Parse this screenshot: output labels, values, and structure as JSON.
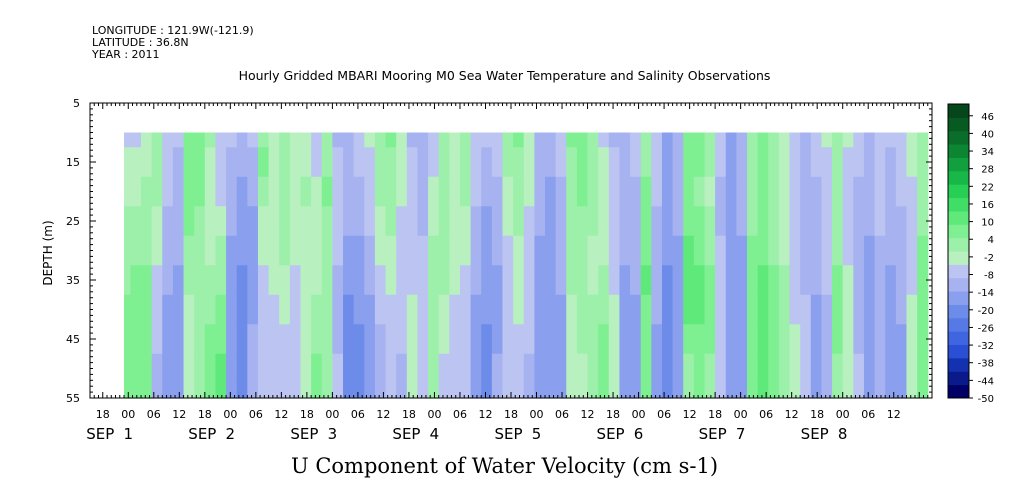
{
  "header": {
    "longitude": "LONGITUDE : 121.9W(-121.9)",
    "latitude": "LATITUDE : 36.8N",
    "year": "YEAR : 2011",
    "title": "Hourly Gridded MBARI Mooring M0 Sea Water Temperature and Salinity Observations"
  },
  "chart_data": {
    "type": "heatmap",
    "title": "Hourly Gridded MBARI Mooring M0 Sea Water Temperature and Salinity Observations",
    "xlabel": "U Component of Water Velocity (cm s-1)",
    "ylabel": "DEPTH (m)",
    "units": "cm s-1",
    "x_axis": {
      "unit": "hours since SEP 1 00:00",
      "range": [
        -9,
        189
      ],
      "hour_tick_labels": [
        "18",
        "00",
        "06",
        "12",
        "18",
        "00",
        "06",
        "12",
        "18",
        "00",
        "06",
        "12",
        "18",
        "00",
        "06",
        "12",
        "18",
        "00",
        "06",
        "12",
        "18",
        "00",
        "06",
        "12",
        "18",
        "00",
        "06",
        "12",
        "18",
        "00",
        "06",
        "12"
      ],
      "hour_tick_values": [
        -6,
        0,
        6,
        12,
        18,
        24,
        30,
        36,
        42,
        48,
        54,
        60,
        66,
        72,
        78,
        84,
        90,
        96,
        102,
        108,
        114,
        120,
        126,
        132,
        138,
        144,
        150,
        156,
        162,
        168,
        174,
        180
      ],
      "date_labels": [
        {
          "month": "SEP",
          "day": "1"
        },
        {
          "month": "SEP",
          "day": "2"
        },
        {
          "month": "SEP",
          "day": "3"
        },
        {
          "month": "SEP",
          "day": "4"
        },
        {
          "month": "SEP",
          "day": "5"
        },
        {
          "month": "SEP",
          "day": "6"
        },
        {
          "month": "SEP",
          "day": "7"
        },
        {
          "month": "SEP",
          "day": "8"
        }
      ],
      "date_label_values": [
        0,
        24,
        48,
        72,
        96,
        120,
        144,
        168
      ]
    },
    "y_axis": {
      "range": [
        5,
        55
      ],
      "inverted": true,
      "tick_labels": [
        "5",
        "15",
        "25",
        "35",
        "45",
        "55"
      ],
      "tick_values": [
        5,
        15,
        25,
        35,
        45,
        55
      ]
    },
    "data_extent": {
      "x": [
        -1,
        188
      ],
      "depth": [
        10,
        55
      ]
    },
    "colorbar": {
      "range": [
        -50,
        50
      ],
      "step": 6,
      "labels": [
        "46",
        "40",
        "34",
        "28",
        "22",
        "16",
        "10",
        "4",
        "-2",
        "-8",
        "-14",
        "-20",
        "-26",
        "-32",
        "-38",
        "-44",
        "-50"
      ],
      "label_values": [
        46,
        40,
        34,
        28,
        22,
        16,
        10,
        4,
        -2,
        -8,
        -14,
        -20,
        -26,
        -32,
        -38,
        -44,
        -50
      ]
    },
    "column_times": [
      -1,
      2,
      4,
      7,
      9,
      12,
      14,
      17,
      19,
      22,
      24,
      27,
      29,
      32,
      34,
      37,
      39,
      42,
      44,
      47,
      49,
      52,
      54,
      57,
      59,
      62,
      64,
      67,
      69,
      72,
      74,
      77,
      79,
      82,
      84,
      87,
      89,
      92,
      94,
      97,
      99,
      102,
      104,
      107,
      109,
      112,
      114,
      117,
      119,
      122,
      124,
      127,
      129,
      132,
      134,
      137,
      139,
      142,
      144,
      147,
      149,
      152,
      154,
      157,
      159,
      162,
      164,
      167,
      169,
      172,
      174,
      177,
      179,
      182,
      184,
      187
    ],
    "depth_levels": [
      10,
      15,
      20,
      25,
      30,
      35,
      40,
      45,
      50,
      55
    ],
    "columns": [
      [
        -6,
        -4,
        -2,
        0,
        2,
        4,
        6,
        7,
        8,
        8
      ],
      [
        -5,
        -3,
        -1,
        1,
        3,
        5,
        6,
        7,
        8,
        8
      ],
      [
        -4,
        -2,
        0,
        2,
        4,
        5,
        6,
        6,
        7,
        7
      ],
      [
        2,
        1,
        0,
        -2,
        -4,
        -6,
        -8,
        -9,
        -10,
        -10
      ],
      [
        -6,
        -7,
        -9,
        -10,
        -11,
        -12,
        -14,
        -15,
        -15,
        -15
      ],
      [
        -9,
        -10,
        -11,
        -12,
        -13,
        -14,
        -15,
        -16,
        -16,
        -16
      ],
      [
        9,
        8,
        7,
        5,
        3,
        1,
        -1,
        -3,
        -4,
        -4
      ],
      [
        8,
        7,
        5,
        3,
        2,
        1,
        1,
        2,
        3,
        3
      ],
      [
        1,
        -1,
        -2,
        -2,
        -1,
        1,
        3,
        5,
        6,
        6
      ],
      [
        -6,
        -6,
        -5,
        -3,
        0,
        3,
        6,
        8,
        10,
        10
      ],
      [
        -9,
        -10,
        -12,
        -13,
        -14,
        -14,
        -14,
        -14,
        -14,
        -14
      ],
      [
        -12,
        -13,
        -14,
        -16,
        -18,
        -19,
        -20,
        -20,
        -19,
        -19
      ],
      [
        -8,
        -10,
        -12,
        -14,
        -15,
        -15,
        -14,
        -12,
        -10,
        -10
      ],
      [
        4,
        5,
        2,
        -1,
        -3,
        -5,
        -6,
        -6,
        -5,
        -5
      ],
      [
        -4,
        -3,
        -2,
        -2,
        -3,
        -4,
        -5,
        -6,
        -6,
        -6
      ],
      [
        2,
        3,
        4,
        3,
        1,
        -1,
        -3,
        -5,
        -6,
        -6
      ],
      [
        -4,
        -3,
        -2,
        -2,
        -3,
        -5,
        -7,
        -8,
        -9,
        -9
      ],
      [
        -2,
        -1,
        0,
        -1,
        -2,
        -3,
        -3,
        -2,
        -1,
        -1
      ],
      [
        -6,
        -5,
        -4,
        -3,
        -2,
        -1,
        1,
        3,
        5,
        6
      ],
      [
        1,
        3,
        5,
        4,
        2,
        1,
        2,
        3,
        4,
        4
      ],
      [
        -10,
        -8,
        -6,
        -6,
        -8,
        -10,
        -11,
        -10,
        -8,
        -8
      ],
      [
        -12,
        -12,
        -12,
        -13,
        -15,
        -17,
        -19,
        -20,
        -20,
        -20
      ],
      [
        -8,
        -9,
        -11,
        -12,
        -14,
        -16,
        -18,
        -20,
        -22,
        -22
      ],
      [
        -4,
        -5,
        -7,
        -9,
        -11,
        -13,
        -15,
        -17,
        -18,
        -18
      ],
      [
        3,
        2,
        0,
        -2,
        -4,
        -6,
        -8,
        -10,
        -11,
        -11
      ],
      [
        5,
        4,
        3,
        1,
        -1,
        -3,
        -5,
        -6,
        -7,
        -7
      ],
      [
        -2,
        -3,
        -4,
        -5,
        -6,
        -7,
        -8,
        -9,
        -10,
        -10
      ],
      [
        -10,
        -9,
        -8,
        -7,
        -6,
        -5,
        -4,
        -3,
        -2,
        -2
      ],
      [
        -12,
        -12,
        -11,
        -10,
        -9,
        -8,
        -7,
        -6,
        -5,
        -5
      ],
      [
        -6,
        -5,
        -3,
        -1,
        1,
        2,
        3,
        3,
        2,
        2
      ],
      [
        2,
        3,
        4,
        4,
        3,
        1,
        -1,
        -3,
        -5,
        -5
      ],
      [
        -3,
        -2,
        -1,
        -1,
        -2,
        -4,
        -6,
        -8,
        -9,
        -9
      ],
      [
        4,
        3,
        1,
        -1,
        -3,
        -5,
        -7,
        -8,
        -9,
        -9
      ],
      [
        -5,
        -6,
        -8,
        -10,
        -12,
        -13,
        -14,
        -15,
        -15,
        -15
      ],
      [
        -8,
        -10,
        -12,
        -14,
        -16,
        -17,
        -18,
        -19,
        -19,
        -19
      ],
      [
        -6,
        -8,
        -10,
        -12,
        -13,
        -14,
        -14,
        -14,
        -13,
        -13
      ],
      [
        2,
        0,
        -2,
        -4,
        -6,
        -7,
        -8,
        -8,
        -7,
        -7
      ],
      [
        5,
        4,
        3,
        1,
        -1,
        -3,
        -4,
        -5,
        -5,
        -5
      ],
      [
        -2,
        -3,
        -4,
        -5,
        -6,
        -7,
        -8,
        -9,
        -10,
        -10
      ],
      [
        -10,
        -11,
        -12,
        -13,
        -14,
        -15,
        -16,
        -17,
        -17,
        -17
      ],
      [
        -12,
        -13,
        -14,
        -15,
        -16,
        -17,
        -18,
        -18,
        -18,
        -18
      ],
      [
        -8,
        -9,
        -10,
        -11,
        -12,
        -13,
        -14,
        -15,
        -16,
        -16
      ],
      [
        5,
        4,
        3,
        2,
        1,
        0,
        -1,
        -2,
        -3,
        -3
      ],
      [
        7,
        6,
        5,
        4,
        3,
        2,
        1,
        0,
        -1,
        -1
      ],
      [
        3,
        2,
        1,
        0,
        -1,
        -1,
        0,
        1,
        2,
        2
      ],
      [
        -5,
        -4,
        -3,
        -2,
        -1,
        1,
        3,
        5,
        6,
        6
      ],
      [
        -10,
        -9,
        -8,
        -7,
        -6,
        -5,
        -4,
        -3,
        -2,
        -2
      ],
      [
        -12,
        -12,
        -12,
        -12,
        -13,
        -14,
        -15,
        -16,
        -17,
        -17
      ],
      [
        -8,
        -9,
        -10,
        -11,
        -12,
        -13,
        -14,
        -15,
        -16,
        -16
      ],
      [
        2,
        3,
        5,
        7,
        9,
        10,
        9,
        7,
        5,
        5
      ],
      [
        -8,
        -8,
        -9,
        -10,
        -11,
        -12,
        -13,
        -14,
        -14,
        -14
      ],
      [
        -14,
        -15,
        -16,
        -17,
        -18,
        -19,
        -20,
        -21,
        -21,
        -21
      ],
      [
        -10,
        -11,
        -12,
        -13,
        -14,
        -15,
        -16,
        -17,
        -17,
        -17
      ],
      [
        8,
        7,
        6,
        8,
        10,
        12,
        10,
        6,
        4,
        4
      ],
      [
        6,
        5,
        4,
        6,
        9,
        12,
        12,
        9,
        6,
        6
      ],
      [
        1,
        0,
        -1,
        1,
        4,
        7,
        8,
        6,
        4,
        4
      ],
      [
        -8,
        -9,
        -10,
        -10,
        -9,
        -8,
        -7,
        -6,
        -5,
        -5
      ],
      [
        -14,
        -15,
        -16,
        -17,
        -18,
        -18,
        -18,
        -18,
        -18,
        -18
      ],
      [
        -10,
        -11,
        -12,
        -13,
        -14,
        -15,
        -15,
        -15,
        -15,
        -15
      ],
      [
        4,
        3,
        2,
        3,
        5,
        7,
        8,
        7,
        6,
        6
      ],
      [
        8,
        7,
        6,
        7,
        9,
        11,
        12,
        11,
        10,
        10
      ],
      [
        3,
        2,
        1,
        2,
        4,
        6,
        7,
        6,
        5,
        5
      ],
      [
        -2,
        -3,
        -4,
        -3,
        -1,
        1,
        3,
        4,
        4,
        4
      ],
      [
        -6,
        -7,
        -8,
        -8,
        -7,
        -6,
        -5,
        -4,
        -3,
        -3
      ],
      [
        -10,
        -11,
        -12,
        -12,
        -11,
        -10,
        -9,
        -8,
        -7,
        -7
      ],
      [
        -8,
        -9,
        -10,
        -11,
        -12,
        -13,
        -14,
        -15,
        -15,
        -15
      ],
      [
        -4,
        -5,
        -6,
        -7,
        -8,
        -9,
        -10,
        -11,
        -12,
        -12
      ],
      [
        2,
        1,
        0,
        1,
        3,
        5,
        6,
        5,
        4,
        4
      ],
      [
        -4,
        -5,
        -6,
        -6,
        -5,
        -4,
        -3,
        -2,
        -1,
        -1
      ],
      [
        -8,
        -9,
        -10,
        -11,
        -12,
        -12,
        -11,
        -10,
        -9,
        -9
      ],
      [
        -10,
        -11,
        -12,
        -13,
        -14,
        -15,
        -15,
        -15,
        -15,
        -15
      ],
      [
        -6,
        -7,
        -8,
        -9,
        -10,
        -11,
        -12,
        -13,
        -13,
        -13
      ],
      [
        -9,
        -10,
        -11,
        -12,
        -13,
        -14,
        -15,
        -16,
        -16,
        -16
      ],
      [
        -7,
        -8,
        -9,
        -10,
        -11,
        -12,
        -13,
        -14,
        -14,
        -14
      ],
      [
        -3,
        -4,
        -5,
        -6,
        -6,
        -5,
        -4,
        -3,
        -2,
        -2
      ],
      [
        2,
        2,
        3,
        4,
        5,
        6,
        7,
        8,
        8,
        8
      ]
    ]
  },
  "colors": {
    "colormap": [
      "#000066",
      "#0a1a8a",
      "#1431b0",
      "#2a4ed4",
      "#3f66e0",
      "#5679e6",
      "#6d8cea",
      "#8a9fee",
      "#a7b3f0",
      "#bcc4f2",
      "#b9f0c0",
      "#9cf0a9",
      "#7ef092",
      "#5fe97b",
      "#40de66",
      "#27cf54",
      "#18b848",
      "#129f3e",
      "#0d8634",
      "#0a6e2a",
      "#075a22",
      "#05471b"
    ],
    "frame": "#000000",
    "background": "#ffffff"
  }
}
